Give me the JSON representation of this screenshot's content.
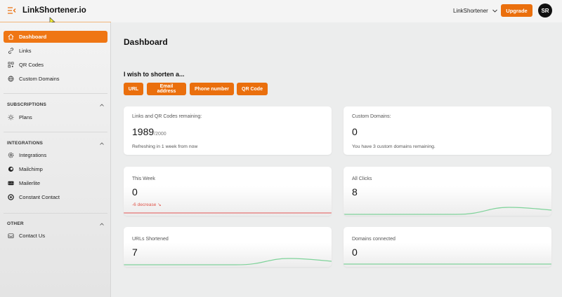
{
  "header": {
    "brand": "LinkShortener.io",
    "workspace": "LinkShortener",
    "upgrade_label": "Upgrade",
    "avatar_initials": "SR",
    "accent_color": "#ea6f0d"
  },
  "sidebar": {
    "items": [
      {
        "label": "Dashboard",
        "icon": "home-icon",
        "active": true
      },
      {
        "label": "Links",
        "icon": "link-icon"
      },
      {
        "label": "QR Codes",
        "icon": "qr-code-icon"
      },
      {
        "label": "Custom Domains",
        "icon": "globe-icon"
      }
    ],
    "sections": [
      {
        "title": "SUBSCRIPTIONS",
        "items": [
          {
            "label": "Plans",
            "icon": "bulb-icon"
          }
        ]
      },
      {
        "title": "INTEGRATIONS",
        "items": [
          {
            "label": "Integrations",
            "icon": "settings-icon"
          },
          {
            "label": "Mailchimp",
            "icon": "mailchimp-icon"
          },
          {
            "label": "Mailerlite",
            "icon": "mailerlite-icon"
          },
          {
            "label": "Constant Contact",
            "icon": "constant-contact-icon"
          }
        ]
      },
      {
        "title": "OTHER",
        "items": [
          {
            "label": "Contact Us",
            "icon": "inbox-icon"
          }
        ]
      }
    ]
  },
  "main": {
    "title": "Dashboard",
    "shorten": {
      "title": "I wish to shorten a...",
      "options": [
        "URL",
        "Email address",
        "Phone number",
        "QR Code"
      ]
    },
    "cards": {
      "remaining": {
        "label": "Links and QR Codes remaining:",
        "value": "1989",
        "max": "/2000",
        "sub": "Refreshing in 1 week from now"
      },
      "domains": {
        "label": "Custom Domains:",
        "value": "0",
        "sub": "You have 3 custom domains remaining."
      },
      "this_week": {
        "label": "This Week",
        "value": "0",
        "trend": "-6 decrease ↘"
      },
      "all_clicks": {
        "label": "All Clicks",
        "value": "8"
      },
      "urls": {
        "label": "URLs Shortened",
        "value": "7"
      },
      "connected": {
        "label": "Domains connected",
        "value": "0"
      }
    },
    "colors": {
      "spark_green": "#7fd39a",
      "spark_red": "#e57373"
    }
  }
}
